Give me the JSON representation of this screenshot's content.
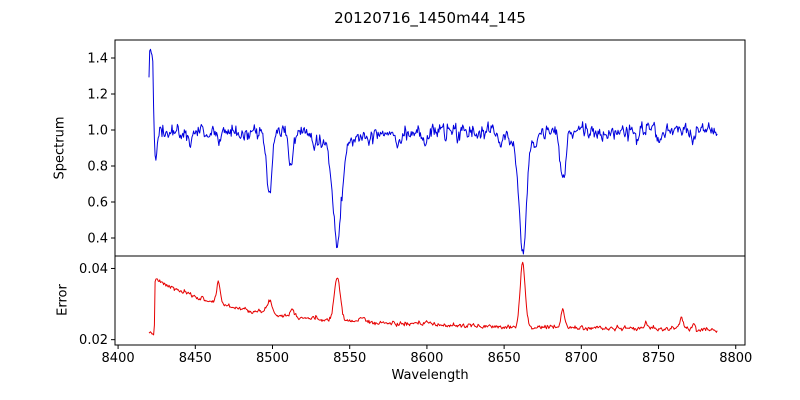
{
  "chart_data": {
    "type": "line",
    "title": "20120716_1450m44_145",
    "xlabel": "Wavelength",
    "xlim": [
      8398,
      8806
    ],
    "xticks": [
      8400,
      8450,
      8500,
      8550,
      8600,
      8650,
      8700,
      8750,
      8800
    ],
    "xtick_labels": [
      "8400",
      "8450",
      "8500",
      "8550",
      "8600",
      "8650",
      "8700",
      "8750",
      "8800"
    ],
    "grid": false,
    "legend": "none",
    "panels": [
      {
        "name": "spectrum",
        "ylabel": "Spectrum",
        "ylim": [
          0.3,
          1.5
        ],
        "yticks": [
          0.4,
          0.6,
          0.8,
          1.0,
          1.2,
          1.4
        ],
        "ytick_labels": [
          "0.4",
          "0.6",
          "0.8",
          "1.0",
          "1.2",
          "1.4"
        ],
        "series": {
          "name": "spectrum",
          "color": "#0000dd",
          "seed": 42,
          "x_start": 8420,
          "x_end": 8788,
          "n_points": 740,
          "offset": 0.985,
          "tilt": 3e-05,
          "noise_sigma": 0.02,
          "noise_smooth": 0.35,
          "decay": null,
          "lead_in": [
            [
              8420,
              1.3
            ],
            [
              8420.5,
              1.445
            ],
            [
              8421,
              1.465
            ],
            [
              8421.8,
              1.43
            ],
            [
              8422.4,
              1.42
            ],
            [
              8423.2,
              1.02
            ],
            [
              8424,
              0.865
            ],
            [
              8424.8,
              0.86
            ],
            [
              8425.6,
              0.93
            ],
            [
              8426.5,
              0.96
            ]
          ],
          "features": [
            [
              8447,
              -0.05,
              1.2
            ],
            [
              8465,
              -0.045,
              1.0
            ],
            [
              8483,
              -0.04,
              1.0
            ],
            [
              8498,
              -0.36,
              1.7
            ],
            [
              8512,
              -0.16,
              1.7
            ],
            [
              8527,
              -0.05,
              1.4
            ],
            [
              8542,
              -0.5,
              2.6
            ],
            [
              8542,
              -0.1,
              9.0
            ],
            [
              8563,
              -0.05,
              1.4
            ],
            [
              8582,
              -0.06,
              1.4
            ],
            [
              8598,
              -0.07,
              1.4
            ],
            [
              8620,
              -0.04,
              1.2
            ],
            [
              8648,
              -0.05,
              1.2
            ],
            [
              8662,
              -0.58,
              2.2
            ],
            [
              8662,
              -0.1,
              7.0
            ],
            [
              8688,
              -0.27,
              1.8
            ],
            [
              8713,
              -0.05,
              1.2
            ],
            [
              8736,
              -0.04,
              1.2
            ],
            [
              8750,
              -0.07,
              1.3
            ],
            [
              8772,
              -0.05,
              1.2
            ]
          ]
        },
        "key_features": {
          "continuum_level": 1.0,
          "edge_spike": {
            "x": 8421,
            "y": 1.46
          },
          "edge_dip": {
            "x": 8424,
            "y": 0.86
          },
          "absorption_lines": [
            {
              "x": 8498,
              "min_y": 0.62
            },
            {
              "x": 8512,
              "min_y": 0.82
            },
            {
              "x": 8542,
              "min_y": 0.41
            },
            {
              "x": 8662,
              "min_y": 0.32
            },
            {
              "x": 8688,
              "min_y": 0.7
            }
          ]
        }
      },
      {
        "name": "error",
        "ylabel": "Error",
        "ylim": [
          0.0185,
          0.0435
        ],
        "yticks": [
          0.02,
          0.04
        ],
        "ytick_labels": [
          "0.02",
          "0.04"
        ],
        "series": {
          "name": "error",
          "color": "#e60000",
          "seed": 7,
          "x_start": 8420,
          "x_end": 8788,
          "n_points": 740,
          "offset": 0.0245,
          "tilt": -4.5e-06,
          "noise_sigma": 0.0003,
          "noise_smooth": 0.35,
          "decay": {
            "amp": 0.0125,
            "tau": 55,
            "x0": 8423.5
          },
          "lead_in": [
            [
              8420,
              0.0215
            ],
            [
              8421,
              0.0223
            ],
            [
              8422,
              0.0216
            ],
            [
              8423,
              0.0214
            ]
          ],
          "features": [
            [
              8465,
              0.006,
              1.2
            ],
            [
              8498,
              0.004,
              1.5
            ],
            [
              8513,
              0.002,
              1.5
            ],
            [
              8542,
              0.012,
              2.0
            ],
            [
              8558,
              0.0015,
              1.5
            ],
            [
              8600,
              0.001,
              1.5
            ],
            [
              8662,
              0.0185,
              1.6
            ],
            [
              8688,
              0.005,
              1.2
            ],
            [
              8742,
              0.0015,
              1.2
            ],
            [
              8765,
              0.003,
              1.2
            ],
            [
              8773,
              0.002,
              1.0
            ]
          ]
        },
        "key_features": {
          "start_jump": {
            "x": 8425,
            "y": 0.037
          },
          "spikes": [
            {
              "x": 8465,
              "y": 0.036
            },
            {
              "x": 8498,
              "y": 0.031
            },
            {
              "x": 8542,
              "y": 0.038
            },
            {
              "x": 8662,
              "y": 0.043
            },
            {
              "x": 8688,
              "y": 0.031
            },
            {
              "x": 8765,
              "y": 0.028
            }
          ],
          "baseline_start": 0.03,
          "baseline_end": 0.023
        }
      }
    ]
  }
}
